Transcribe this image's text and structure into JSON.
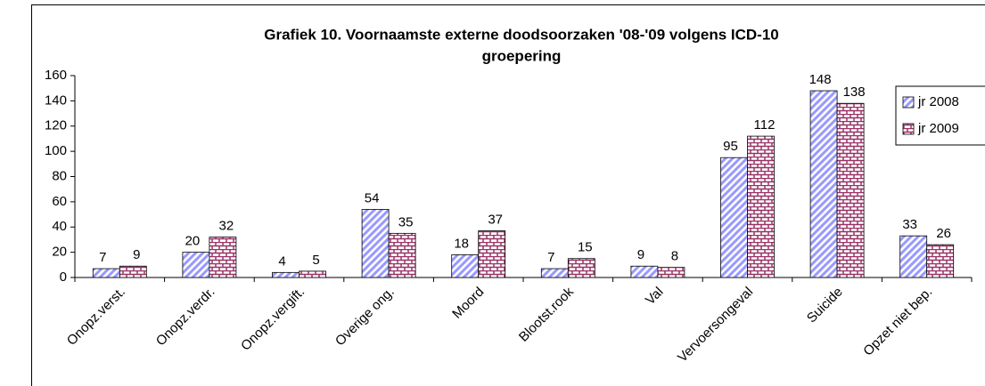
{
  "chart_data": {
    "type": "bar",
    "title": [
      "Grafiek 10. Voornaamste externe doodsoorzaken '08-'09 volgens ICD-10",
      "groepering"
    ],
    "categories": [
      "Onopz.verst.",
      "Onopz.verdr.",
      "Onopz.vergift.",
      "Overige ong.",
      "Moord",
      "Blootst.rook",
      "Val",
      "Vervoersongeval",
      "Suicide",
      "Opzet niet bep."
    ],
    "series": [
      {
        "name": "jr 2008",
        "color": "#9999ff",
        "values": [
          7,
          20,
          4,
          54,
          18,
          7,
          9,
          95,
          148,
          33
        ]
      },
      {
        "name": "jr 2009",
        "color": "#993366",
        "values": [
          9,
          32,
          5,
          35,
          37,
          15,
          8,
          112,
          138,
          26
        ]
      }
    ],
    "ylim": [
      0,
      160
    ],
    "yticks": [
      0,
      20,
      40,
      60,
      80,
      100,
      120,
      140,
      160
    ],
    "grid": false,
    "legend": "right"
  }
}
